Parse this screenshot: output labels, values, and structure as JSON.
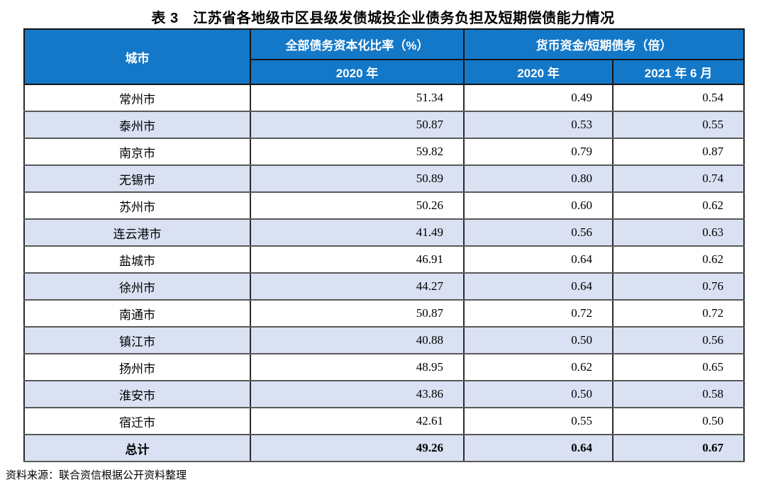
{
  "title": "表 3　江苏省各地级市区县级发债城投企业债务负担及短期偿债能力情况",
  "table": {
    "header": {
      "city": "城市",
      "group_ratio": "全部债务资本化比率（%）",
      "group_cash": "货币资金/短期债务（倍）",
      "sub_ratio_2020": "2020 年",
      "sub_cash_2020": "2020 年",
      "sub_cash_202106": "2021 年 6 月"
    },
    "rows": [
      {
        "city": "常州市",
        "ratio_2020": "51.34",
        "cash_2020": "0.49",
        "cash_202106": "0.54"
      },
      {
        "city": "泰州市",
        "ratio_2020": "50.87",
        "cash_2020": "0.53",
        "cash_202106": "0.55"
      },
      {
        "city": "南京市",
        "ratio_2020": "59.82",
        "cash_2020": "0.79",
        "cash_202106": "0.87"
      },
      {
        "city": "无锡市",
        "ratio_2020": "50.89",
        "cash_2020": "0.80",
        "cash_202106": "0.74"
      },
      {
        "city": "苏州市",
        "ratio_2020": "50.26",
        "cash_2020": "0.60",
        "cash_202106": "0.62"
      },
      {
        "city": "连云港市",
        "ratio_2020": "41.49",
        "cash_2020": "0.56",
        "cash_202106": "0.63"
      },
      {
        "city": "盐城市",
        "ratio_2020": "46.91",
        "cash_2020": "0.64",
        "cash_202106": "0.62"
      },
      {
        "city": "徐州市",
        "ratio_2020": "44.27",
        "cash_2020": "0.64",
        "cash_202106": "0.76"
      },
      {
        "city": "南通市",
        "ratio_2020": "50.87",
        "cash_2020": "0.72",
        "cash_202106": "0.72"
      },
      {
        "city": "镇江市",
        "ratio_2020": "40.88",
        "cash_2020": "0.50",
        "cash_202106": "0.56"
      },
      {
        "city": "扬州市",
        "ratio_2020": "48.95",
        "cash_2020": "0.62",
        "cash_202106": "0.65"
      },
      {
        "city": "淮安市",
        "ratio_2020": "43.86",
        "cash_2020": "0.50",
        "cash_202106": "0.58"
      },
      {
        "city": "宿迁市",
        "ratio_2020": "42.61",
        "cash_2020": "0.55",
        "cash_202106": "0.50"
      },
      {
        "city": "总计",
        "ratio_2020": "49.26",
        "cash_2020": "0.64",
        "cash_202106": "0.67",
        "total": true
      }
    ]
  },
  "footer": {
    "source_note": "资料来源：联合资信根据公开资料整理"
  },
  "colors": {
    "header_bg": "#1478C8",
    "header_text": "#FFFFFF",
    "row_alt_bg": "#D9E1F2",
    "outer_border": "#000000",
    "row_border": "#595959"
  }
}
